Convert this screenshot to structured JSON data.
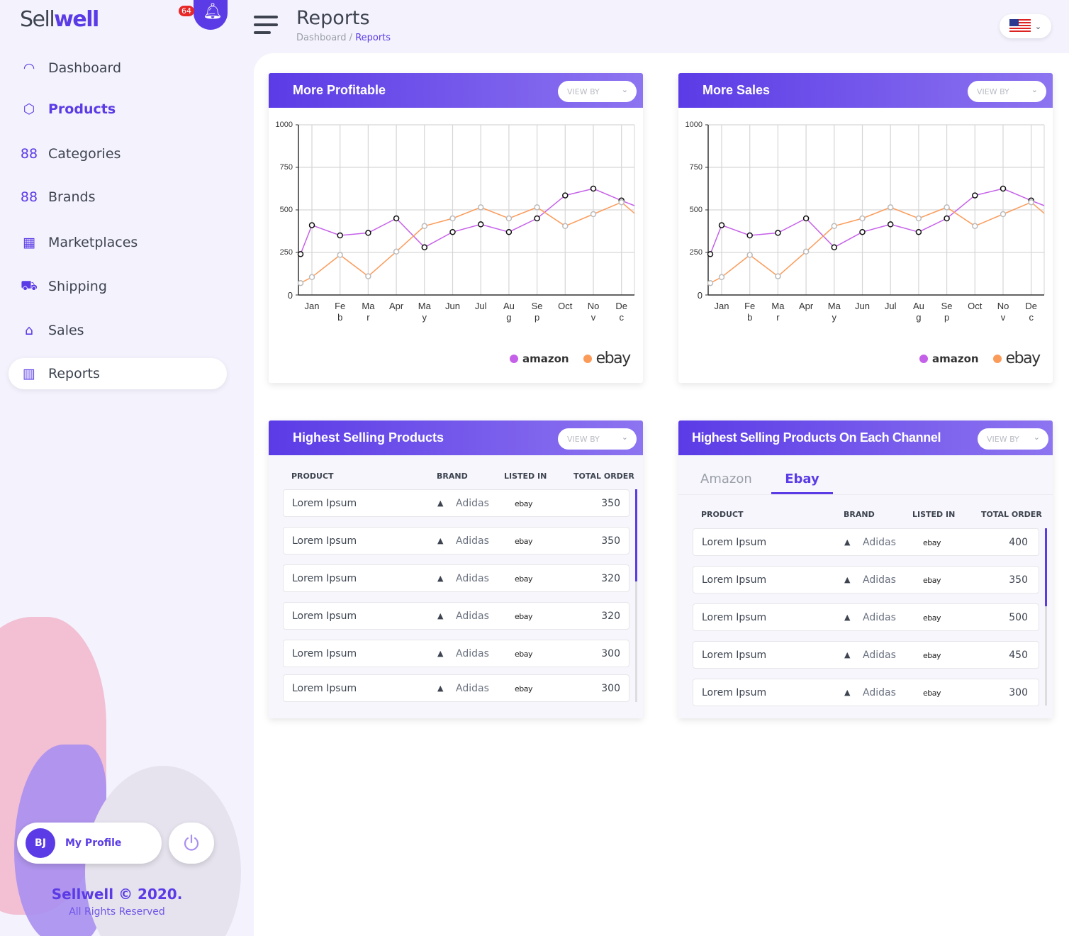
{
  "brand": {
    "logo_light": "Sell",
    "logo_bold": "well",
    "notifications": "64"
  },
  "sidebar": {
    "items": [
      {
        "label": "Dashboard",
        "icon": "speedometer-icon"
      },
      {
        "label": "Products",
        "icon": "box-icon"
      },
      {
        "label": "Categories",
        "icon": "grid-icon"
      },
      {
        "label": "Brands",
        "icon": "grid-icon"
      },
      {
        "label": "Marketplaces",
        "icon": "store-icon"
      },
      {
        "label": "Shipping",
        "icon": "shipping-icon"
      },
      {
        "label": "Sales",
        "icon": "tag-icon"
      },
      {
        "label": "Reports",
        "icon": "report-icon"
      }
    ],
    "profile": {
      "initials": "BJ",
      "label": "My Profile"
    },
    "footer": {
      "copyright": "Sellwell © 2020.",
      "rights": "All Rights Reserved"
    }
  },
  "header": {
    "title": "Reports",
    "breadcrumb_root": "Dashboard / ",
    "breadcrumb_current": "Reports"
  },
  "viewby": "VIEW BY",
  "legend": {
    "amazon": "amazon",
    "ebay": "ebay",
    "amazon_color": "#c561e8",
    "ebay_color": "#fb9b5a"
  },
  "chart_data": [
    {
      "type": "line",
      "title": "More Profitable",
      "ylim": [
        0,
        1000
      ],
      "yticks": [
        "0",
        "250",
        "500",
        "750",
        "1000"
      ],
      "categories": [
        "Jan",
        "Feb",
        "Mar",
        "Apr",
        "May",
        "Jun",
        "Jul",
        "Aug",
        "Sep",
        "Oct",
        "Nov",
        "Dec"
      ],
      "series": [
        {
          "name": "amazon",
          "start": 240,
          "values": [
            410,
            350,
            365,
            450,
            280,
            370,
            415,
            370,
            450,
            585,
            625,
            555
          ],
          "end": 525
        },
        {
          "name": "ebay",
          "start": 70,
          "values": [
            105,
            235,
            110,
            255,
            405,
            450,
            515,
            450,
            515,
            405,
            475,
            545
          ],
          "end": 480
        }
      ]
    },
    {
      "type": "line",
      "title": "More Sales",
      "ylim": [
        0,
        1000
      ],
      "yticks": [
        "0",
        "250",
        "500",
        "750",
        "1000"
      ],
      "categories": [
        "Jan",
        "Feb",
        "Mar",
        "Apr",
        "May",
        "Jun",
        "Jul",
        "Aug",
        "Sep",
        "Oct",
        "Nov",
        "Dec"
      ],
      "series": [
        {
          "name": "amazon",
          "start": 240,
          "values": [
            410,
            350,
            365,
            450,
            280,
            370,
            415,
            370,
            450,
            585,
            625,
            555
          ],
          "end": 525
        },
        {
          "name": "ebay",
          "start": 70,
          "values": [
            105,
            235,
            110,
            255,
            405,
            450,
            515,
            450,
            515,
            405,
            475,
            545
          ],
          "end": 480
        }
      ]
    }
  ],
  "table1": {
    "title": "Highest Selling Products",
    "headers": [
      "PRODUCT",
      "BRAND",
      "LISTED IN",
      "TOTAL ORDER"
    ],
    "rows": [
      {
        "product": "Lorem Ipsum",
        "brand": "Adidas",
        "listed": "ebay",
        "total": "350"
      },
      {
        "product": "Lorem Ipsum",
        "brand": "Adidas",
        "listed": "ebay",
        "total": "350"
      },
      {
        "product": "Lorem Ipsum",
        "brand": "Adidas",
        "listed": "ebay",
        "total": "320"
      },
      {
        "product": "Lorem Ipsum",
        "brand": "Adidas",
        "listed": "ebay",
        "total": "320"
      },
      {
        "product": "Lorem Ipsum",
        "brand": "Adidas",
        "listed": "ebay",
        "total": "300"
      },
      {
        "product": "Lorem Ipsum",
        "brand": "Adidas",
        "listed": "ebay",
        "total": "300"
      }
    ]
  },
  "table2": {
    "title": "Highest Selling Products On Each Channel",
    "tabs": [
      "Amazon",
      "Ebay"
    ],
    "active_tab": "Ebay",
    "headers": [
      "PRODUCT",
      "BRAND",
      "LISTED IN",
      "TOTAL ORDER"
    ],
    "rows": [
      {
        "product": "Lorem Ipsum",
        "brand": "Adidas",
        "listed": "ebay",
        "total": "400"
      },
      {
        "product": "Lorem Ipsum",
        "brand": "Adidas",
        "listed": "ebay",
        "total": "350"
      },
      {
        "product": "Lorem Ipsum",
        "brand": "Adidas",
        "listed": "ebay",
        "total": "500"
      },
      {
        "product": "Lorem Ipsum",
        "brand": "Adidas",
        "listed": "ebay",
        "total": "450"
      },
      {
        "product": "Lorem Ipsum",
        "brand": "Adidas",
        "listed": "ebay",
        "total": "300"
      }
    ]
  }
}
